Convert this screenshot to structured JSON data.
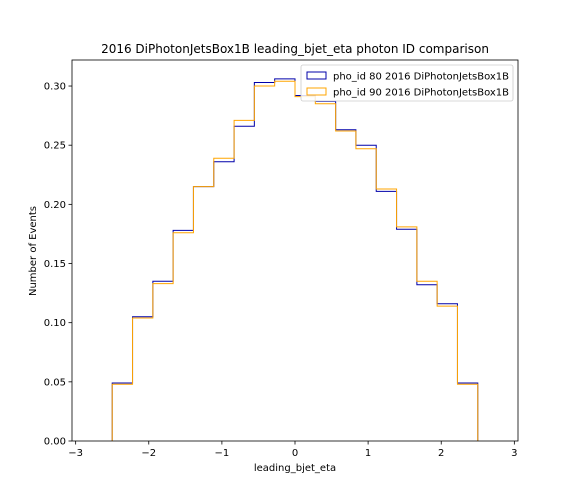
{
  "chart_data": {
    "type": "step-histogram",
    "title": "2016 DiPhotonJetsBox1B leading_bjet_eta photon ID comparison",
    "xlabel": "leading_bjet_eta",
    "ylabel": "Number of Events",
    "xlim": [
      -3.05,
      3.05
    ],
    "ylim": [
      0.0,
      0.322
    ],
    "xticks": [
      -3,
      -2,
      -1,
      0,
      1,
      2,
      3
    ],
    "xtick_labels": [
      "−3",
      "−2",
      "−1",
      "0",
      "1",
      "2",
      "3"
    ],
    "yticks": [
      0.0,
      0.05,
      0.1,
      0.15,
      0.2,
      0.25,
      0.3
    ],
    "ytick_labels": [
      "0.00",
      "0.05",
      "0.10",
      "0.15",
      "0.20",
      "0.25",
      "0.30"
    ],
    "bin_edges": [
      -2.5,
      -2.222,
      -1.944,
      -1.667,
      -1.389,
      -1.111,
      -0.833,
      -0.556,
      -0.278,
      0.0,
      0.278,
      0.556,
      0.833,
      1.111,
      1.389,
      1.667,
      1.944,
      2.222,
      2.5
    ],
    "legend_position": "top-right",
    "series": [
      {
        "name": "pho_id 80 2016 DiPhotonJetsBox1B",
        "color": "#0000aa",
        "values": [
          0.049,
          0.105,
          0.135,
          0.178,
          0.215,
          0.236,
          0.266,
          0.303,
          0.306,
          0.292,
          0.287,
          0.263,
          0.25,
          0.211,
          0.179,
          0.132,
          0.116,
          0.049
        ]
      },
      {
        "name": "pho_id 90 2016 DiPhotonJetsBox1B",
        "color": "#ffa500",
        "values": [
          0.048,
          0.104,
          0.133,
          0.176,
          0.215,
          0.239,
          0.271,
          0.3,
          0.304,
          0.291,
          0.285,
          0.262,
          0.247,
          0.213,
          0.181,
          0.135,
          0.114,
          0.048
        ]
      }
    ]
  }
}
